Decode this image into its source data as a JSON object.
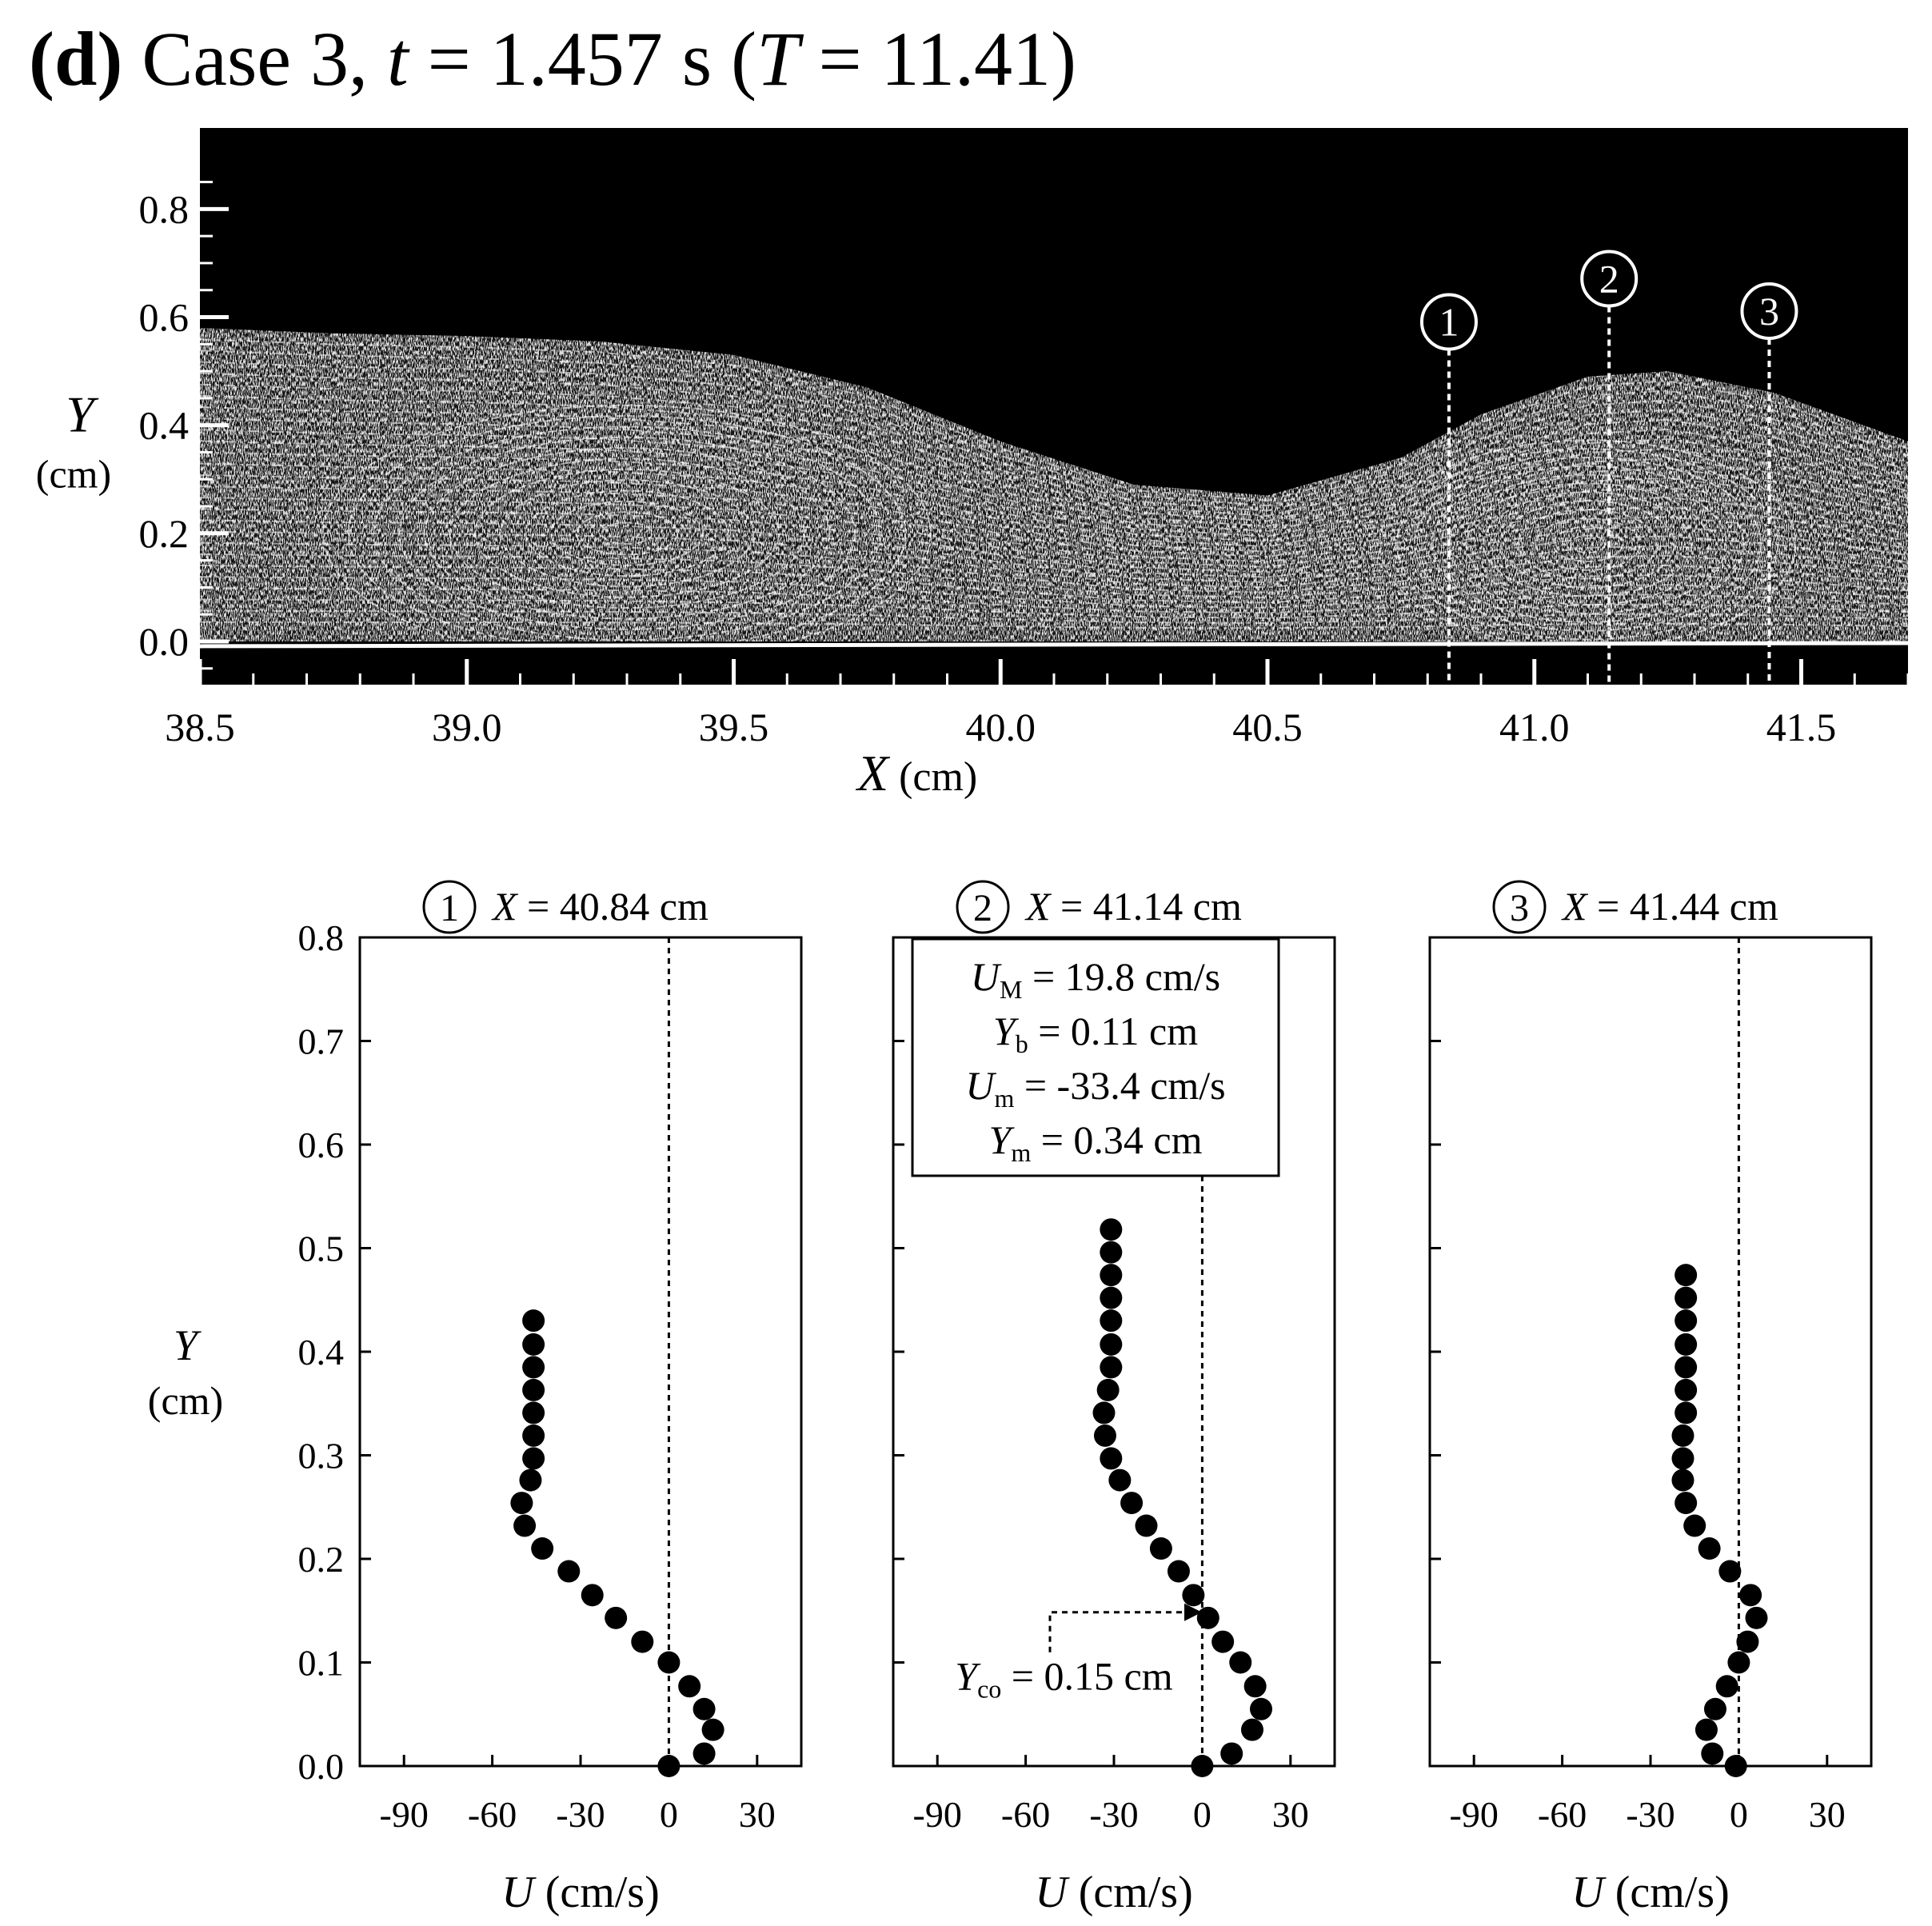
{
  "figure": {
    "panel_letter": "(d)",
    "title_case": "Case 3, ",
    "title_t_var": "t",
    "title_t_value": " = 1.457 s (",
    "title_T_var": "T",
    "title_T_value": " = 11.41)"
  },
  "colors": {
    "ink": "#000000",
    "image_bg": "#000000",
    "streak": "#ffffff",
    "marker": "#000000"
  },
  "chart_data": [
    {
      "type": "image",
      "description_label": "flow visualization",
      "xlabel_var": "X",
      "xlabel_unit": " (cm)",
      "ylabel_var": "Y",
      "ylabel_unit": "(cm)",
      "xlim": [
        38.5,
        41.7
      ],
      "ylim": [
        -0.08,
        0.95
      ],
      "x_ticks": [
        "38.5",
        "39.0",
        "39.5",
        "40.0",
        "40.5",
        "41.0",
        "41.5"
      ],
      "y_ticks": [
        "0.0",
        "0.2",
        "0.4",
        "0.6",
        "0.8"
      ],
      "stations": [
        {
          "label": "1",
          "x": 40.84
        },
        {
          "label": "2",
          "x": 41.14
        },
        {
          "label": "3",
          "x": 41.44
        }
      ],
      "surface_y": [
        [
          38.5,
          0.58
        ],
        [
          38.75,
          0.57
        ],
        [
          39.0,
          0.565
        ],
        [
          39.25,
          0.555
        ],
        [
          39.5,
          0.53
        ],
        [
          39.75,
          0.47
        ],
        [
          40.0,
          0.37
        ],
        [
          40.25,
          0.29
        ],
        [
          40.5,
          0.27
        ],
        [
          40.75,
          0.34
        ],
        [
          40.9,
          0.42
        ],
        [
          41.1,
          0.49
        ],
        [
          41.25,
          0.5
        ],
        [
          41.45,
          0.46
        ],
        [
          41.7,
          0.37
        ]
      ]
    },
    {
      "type": "scatter",
      "station_label": "1",
      "title_var": "X",
      "title_value": " = 40.84 cm",
      "xlabel_var": "U",
      "xlabel_unit": " (cm/s)",
      "ylabel_var": "Y",
      "ylabel_unit": "(cm)",
      "xlim": [
        -105,
        45
      ],
      "ylim": [
        0,
        0.8
      ],
      "x_ticks": [
        "-90",
        "-60",
        "-30",
        "0",
        "30"
      ],
      "y_ticks": [
        "0.0",
        "0.1",
        "0.2",
        "0.3",
        "0.4",
        "0.5",
        "0.6",
        "0.7",
        "0.8"
      ],
      "zero_line": 0,
      "points": [
        [
          0,
          0
        ],
        [
          12,
          0.012
        ],
        [
          15,
          0.035
        ],
        [
          12,
          0.055
        ],
        [
          7,
          0.077
        ],
        [
          0,
          0.1
        ],
        [
          -9,
          0.12
        ],
        [
          -18,
          0.143
        ],
        [
          -26,
          0.165
        ],
        [
          -34,
          0.188
        ],
        [
          -43,
          0.21
        ],
        [
          -49,
          0.232
        ],
        [
          -50,
          0.254
        ],
        [
          -47,
          0.276
        ],
        [
          -46,
          0.297
        ],
        [
          -46,
          0.319
        ],
        [
          -46,
          0.341
        ],
        [
          -46,
          0.363
        ],
        [
          -46,
          0.385
        ],
        [
          -46,
          0.407
        ],
        [
          -46,
          0.43
        ]
      ]
    },
    {
      "type": "scatter",
      "station_label": "2",
      "title_var": "X",
      "title_value": " = 41.14 cm",
      "xlabel_var": "U",
      "xlabel_unit": " (cm/s)",
      "xlim": [
        -105,
        45
      ],
      "ylim": [
        0,
        0.8
      ],
      "x_ticks": [
        "-90",
        "-60",
        "-30",
        "0",
        "30"
      ],
      "zero_line": 0,
      "info_box": [
        {
          "var": "U",
          "sub": "M",
          "value": " = 19.8 cm/s"
        },
        {
          "var": "Y",
          "sub": "b",
          "value": " = 0.11 cm"
        },
        {
          "var": "U",
          "sub": "m",
          "value": " = -33.4 cm/s"
        },
        {
          "var": "Y",
          "sub": "m",
          "value": " = 0.34 cm"
        }
      ],
      "annotation": {
        "var": "Y",
        "sub": "co",
        "value": " = 0.15 cm",
        "y": 0.15
      },
      "points": [
        [
          0,
          0
        ],
        [
          10,
          0.012
        ],
        [
          17,
          0.035
        ],
        [
          20,
          0.055
        ],
        [
          18,
          0.077
        ],
        [
          13,
          0.1
        ],
        [
          7,
          0.12
        ],
        [
          2,
          0.143
        ],
        [
          -3,
          0.165
        ],
        [
          -8,
          0.188
        ],
        [
          -14,
          0.21
        ],
        [
          -19,
          0.232
        ],
        [
          -24,
          0.254
        ],
        [
          -28,
          0.276
        ],
        [
          -31,
          0.297
        ],
        [
          -33,
          0.319
        ],
        [
          -33.4,
          0.341
        ],
        [
          -32,
          0.363
        ],
        [
          -31,
          0.385
        ],
        [
          -31,
          0.407
        ],
        [
          -31,
          0.43
        ],
        [
          -31,
          0.452
        ],
        [
          -31,
          0.474
        ],
        [
          -31,
          0.496
        ],
        [
          -31,
          0.518
        ]
      ]
    },
    {
      "type": "scatter",
      "station_label": "3",
      "title_var": "X",
      "title_value": " = 41.44 cm",
      "xlabel_var": "U",
      "xlabel_unit": " (cm/s)",
      "xlim": [
        -105,
        45
      ],
      "ylim": [
        0,
        0.8
      ],
      "x_ticks": [
        "-90",
        "-60",
        "-30",
        "0",
        "30"
      ],
      "zero_line": 0,
      "points": [
        [
          -1,
          0
        ],
        [
          -9,
          0.012
        ],
        [
          -11,
          0.035
        ],
        [
          -8,
          0.055
        ],
        [
          -4,
          0.077
        ],
        [
          0,
          0.1
        ],
        [
          3,
          0.12
        ],
        [
          6,
          0.143
        ],
        [
          4,
          0.165
        ],
        [
          -3,
          0.188
        ],
        [
          -10,
          0.21
        ],
        [
          -15,
          0.232
        ],
        [
          -18,
          0.254
        ],
        [
          -19,
          0.276
        ],
        [
          -19,
          0.297
        ],
        [
          -19,
          0.319
        ],
        [
          -18,
          0.341
        ],
        [
          -18,
          0.363
        ],
        [
          -18,
          0.385
        ],
        [
          -18,
          0.407
        ],
        [
          -18,
          0.43
        ],
        [
          -18,
          0.452
        ],
        [
          -18,
          0.474
        ]
      ]
    }
  ]
}
